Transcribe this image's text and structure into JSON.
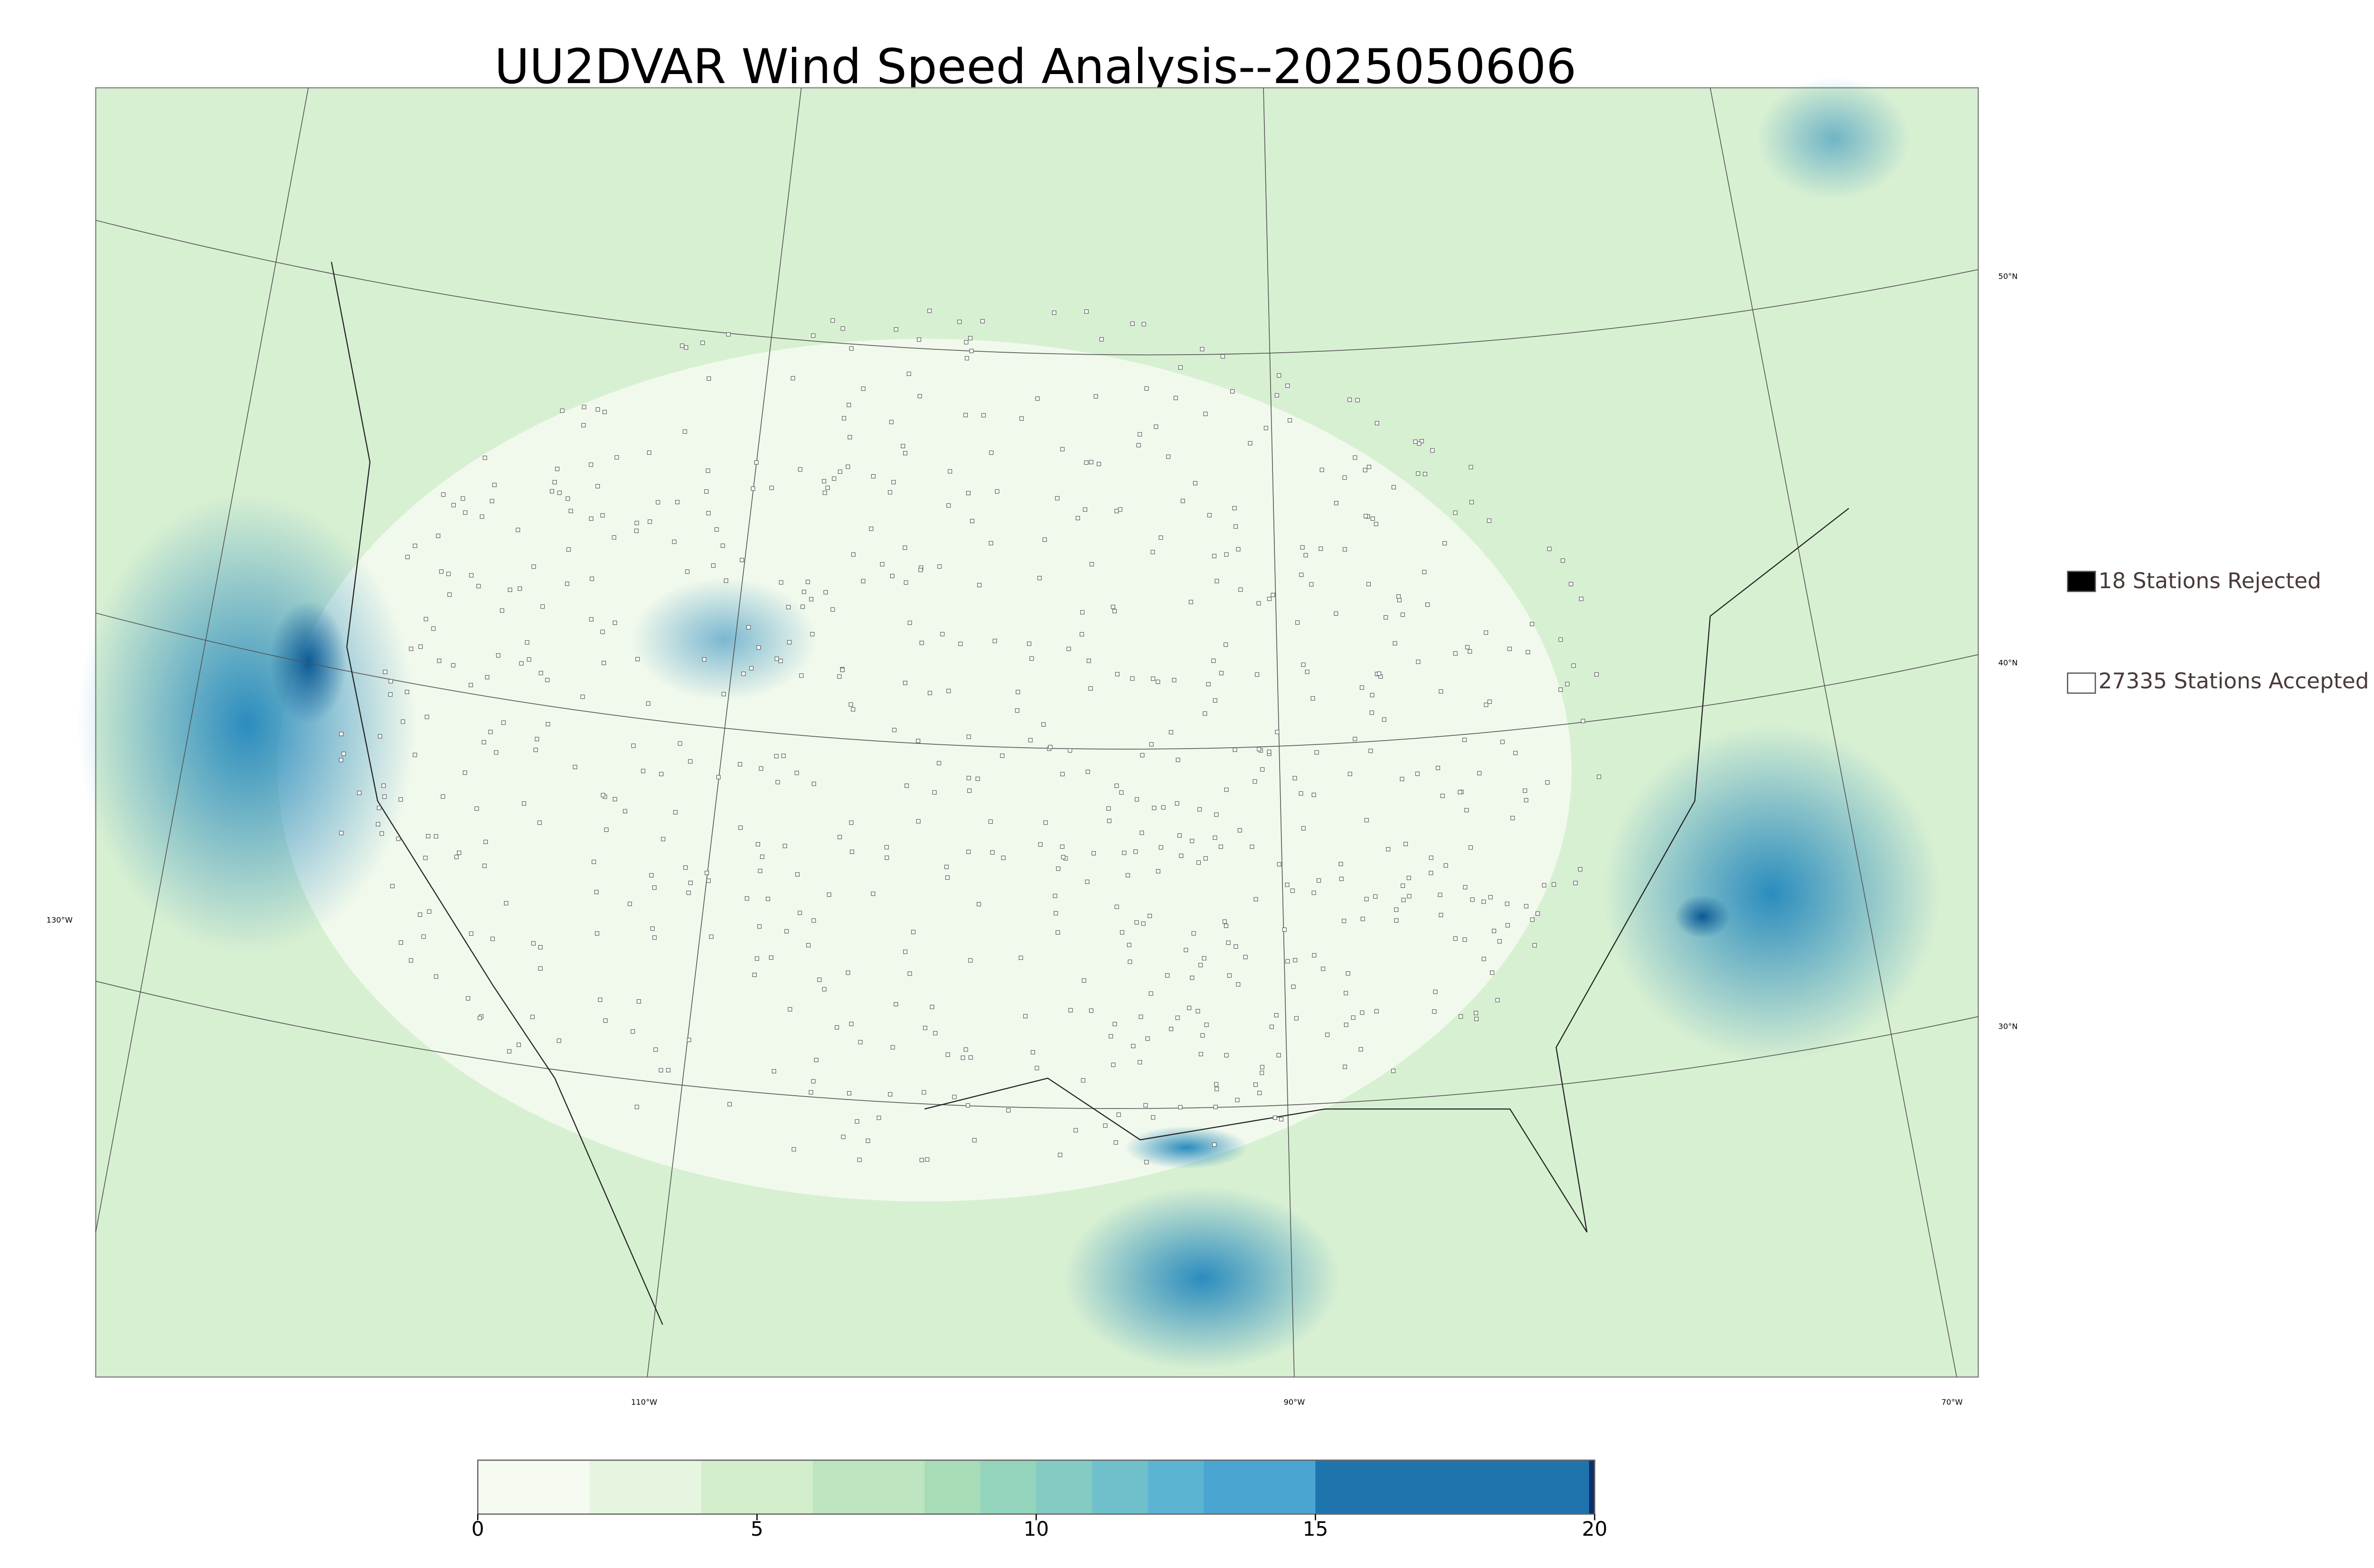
{
  "title": "UU2DVAR Wind Speed Analysis--2025050606",
  "legend": [
    {
      "label": "18 Stations Rejected",
      "color": "#000000"
    },
    {
      "label": "27335 Stations Accepted",
      "color": "#ffffff"
    }
  ],
  "graticule": {
    "lat_labels": [
      "50°N",
      "40°N",
      "30°N"
    ],
    "lon_labels": [
      "130°W",
      "110°W",
      "90°W",
      "70°W"
    ]
  },
  "colorbar": {
    "lim": [
      0,
      20
    ],
    "ticks": [
      0,
      5,
      10,
      15,
      20
    ],
    "levels": [
      0,
      2,
      4,
      6,
      8,
      9,
      10,
      11,
      12,
      13,
      15,
      19.9,
      20
    ],
    "colors": [
      "#f5fbf0",
      "#e6f5df",
      "#d3eecb",
      "#bde5bf",
      "#a6dcb8",
      "#94d4bc",
      "#84cbc4",
      "#70c0cb",
      "#5cb4d3",
      "#4aa5d0",
      "#1f74ae",
      "#08306b"
    ]
  }
}
